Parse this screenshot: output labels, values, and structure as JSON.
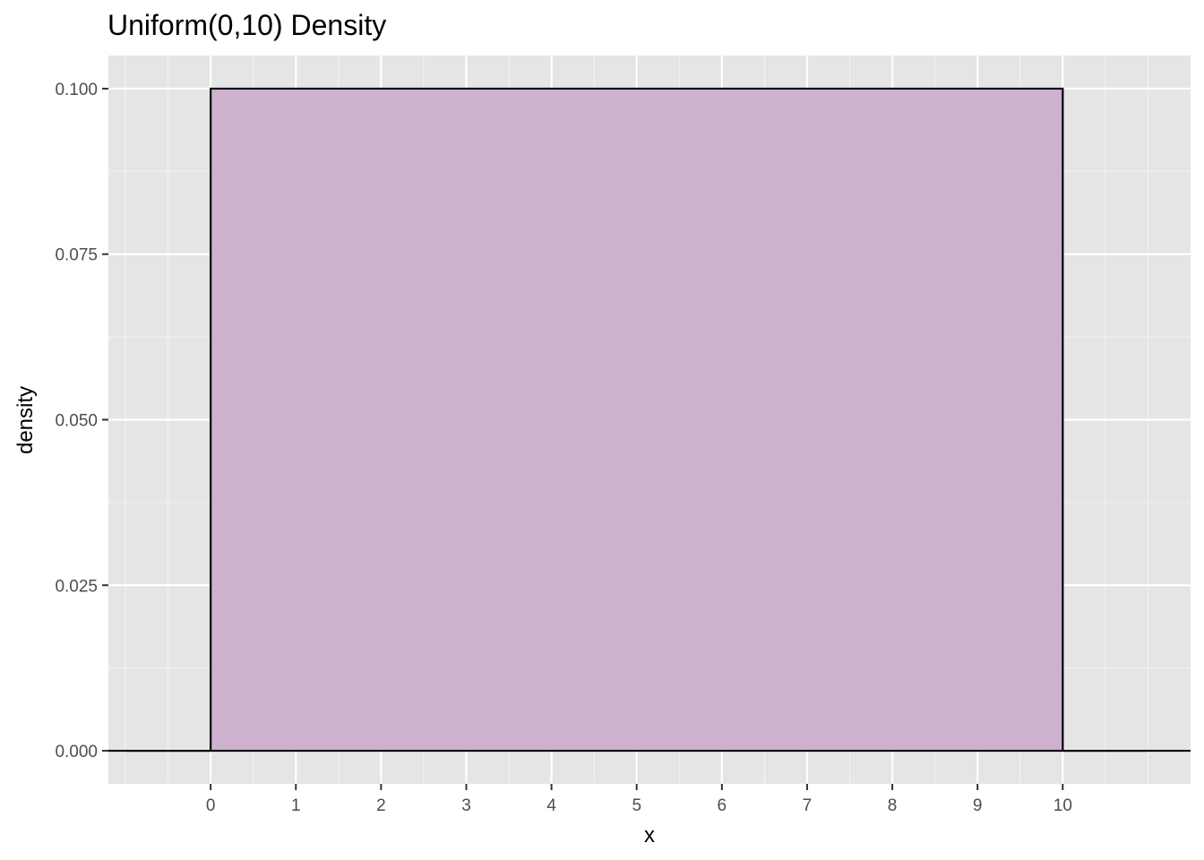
{
  "chart_data": {
    "type": "area",
    "title": "Uniform(0,10) Density",
    "xlabel": "x",
    "ylabel": "density",
    "xlim": [
      -1.2,
      11.5
    ],
    "ylim": [
      -0.005,
      0.105
    ],
    "x_ticks": [
      0,
      1,
      2,
      3,
      4,
      5,
      6,
      7,
      8,
      9,
      10
    ],
    "x_tick_labels": [
      "0",
      "1",
      "2",
      "3",
      "4",
      "5",
      "6",
      "7",
      "8",
      "9",
      "10"
    ],
    "x_minor_ticks": [
      -1,
      -0.5,
      0.5,
      1.5,
      2.5,
      3.5,
      4.5,
      5.5,
      6.5,
      7.5,
      8.5,
      9.5,
      10.5,
      11
    ],
    "y_ticks": [
      0,
      0.025,
      0.05,
      0.075,
      0.1
    ],
    "y_tick_labels": [
      "0.000",
      "0.025",
      "0.050",
      "0.075",
      "0.100"
    ],
    "y_minor_ticks": [
      0.0125,
      0.0375,
      0.0625,
      0.0875
    ],
    "grid": true,
    "series": [
      {
        "x": [
          -1,
          0,
          0,
          10,
          10,
          11
        ],
        "y": [
          0,
          0,
          0.1,
          0.1,
          0,
          0
        ],
        "fill": "#cdb1cf",
        "stroke": "#000000"
      }
    ],
    "baseline_y": 0,
    "colors": {
      "panel": "#e5e5e5",
      "grid_major": "#ffffff",
      "grid_minor": "#f2f2f2",
      "tick_text": "#4d4d4d",
      "fill": "#cdb1cf",
      "line": "#000000"
    }
  }
}
